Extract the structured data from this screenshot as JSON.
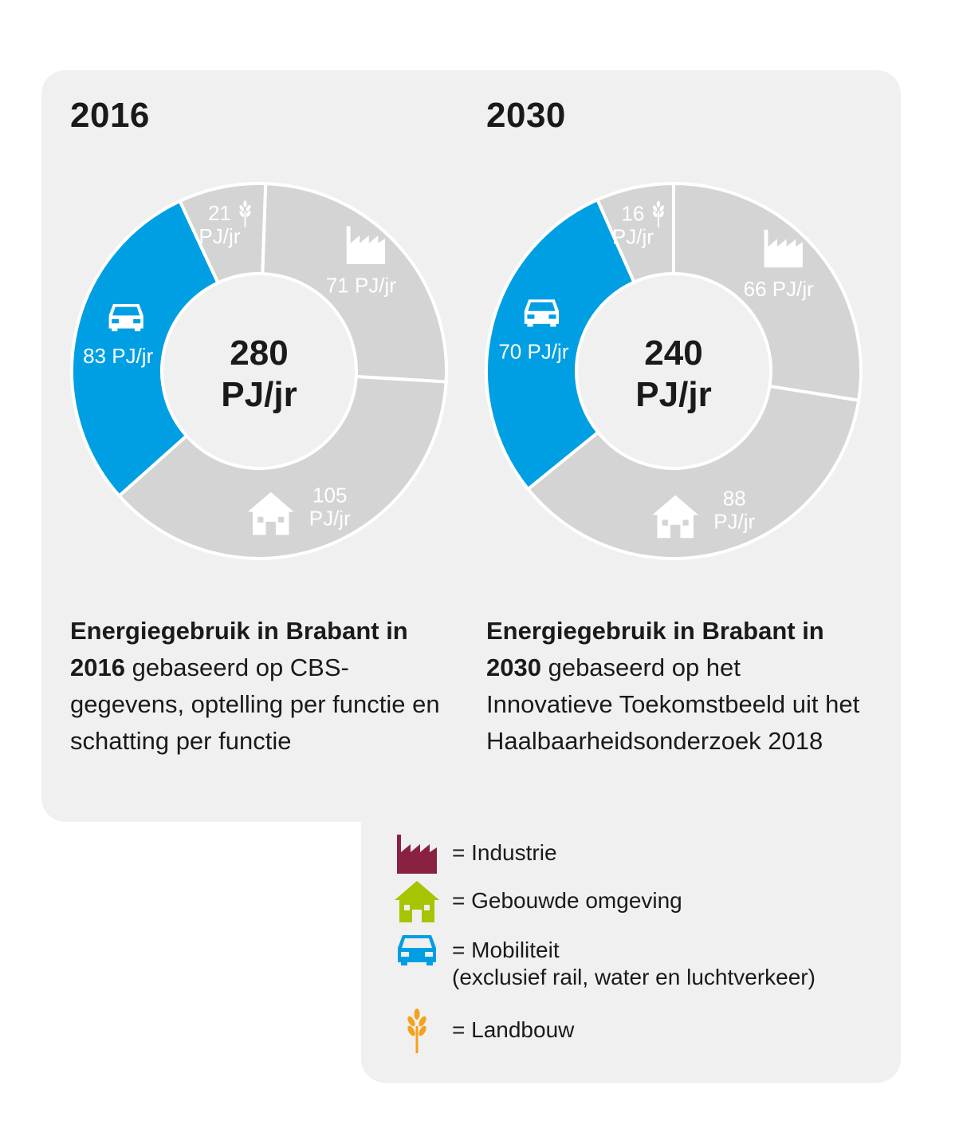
{
  "colors": {
    "panel": "#f0f0f0",
    "segment_gray": "#d4d4d4",
    "mobiliteit": "#009fe3",
    "industrie": "#8b2141",
    "gebouwde_omgeving": "#a8c300",
    "landbouw": "#f3a21b"
  },
  "chart_data": [
    {
      "type": "pie",
      "title": "2016",
      "center_value": "280",
      "center_unit": "PJ/jr",
      "slices": [
        {
          "name": "Industrie",
          "value": 71,
          "label": "71 PJ/jr",
          "icon": "factory-icon"
        },
        {
          "name": "Gebouwde omgeving",
          "value": 105,
          "label": "105 PJ/jr",
          "icon": "house-icon"
        },
        {
          "name": "Mobiliteit",
          "value": 83,
          "label": "83 PJ/jr",
          "icon": "car-icon"
        },
        {
          "name": "Landbouw",
          "value": 21,
          "label": "21 PJ/jr",
          "icon": "wheat-icon"
        }
      ]
    },
    {
      "type": "pie",
      "title": "2030",
      "center_value": "240",
      "center_unit": "PJ/jr",
      "slices": [
        {
          "name": "Industrie",
          "value": 66,
          "label": "66 PJ/jr",
          "icon": "factory-icon"
        },
        {
          "name": "Gebouwde omgeving",
          "value": 88,
          "label": "88 PJ/jr",
          "icon": "house-icon"
        },
        {
          "name": "Mobiliteit",
          "value": 70,
          "label": "70 PJ/jr",
          "icon": "car-icon"
        },
        {
          "name": "Landbouw",
          "value": 16,
          "label": "16 PJ/jr",
          "icon": "wheat-icon"
        }
      ]
    }
  ],
  "captions": [
    {
      "bold": "Energiegebruik in Brabant in 2016",
      "rest": " gebaseerd op CBS-gegevens, optelling per functie en schatting per functie"
    },
    {
      "bold": "Energiegebruik in Brabant in 2030",
      "rest": " gebaseerd op het Innovatieve Toekomstbeeld uit het Haalbaarheidsonderzoek 2018"
    }
  ],
  "legend": [
    {
      "icon": "factory-icon",
      "label": "= Industrie",
      "sub": ""
    },
    {
      "icon": "house-icon",
      "label": "= Gebouwde omgeving",
      "sub": ""
    },
    {
      "icon": "car-icon",
      "label": "= Mobiliteit",
      "sub": "(exclusief rail, water en luchtverkeer)"
    },
    {
      "icon": "wheat-icon",
      "label": "= Landbouw",
      "sub": ""
    }
  ]
}
